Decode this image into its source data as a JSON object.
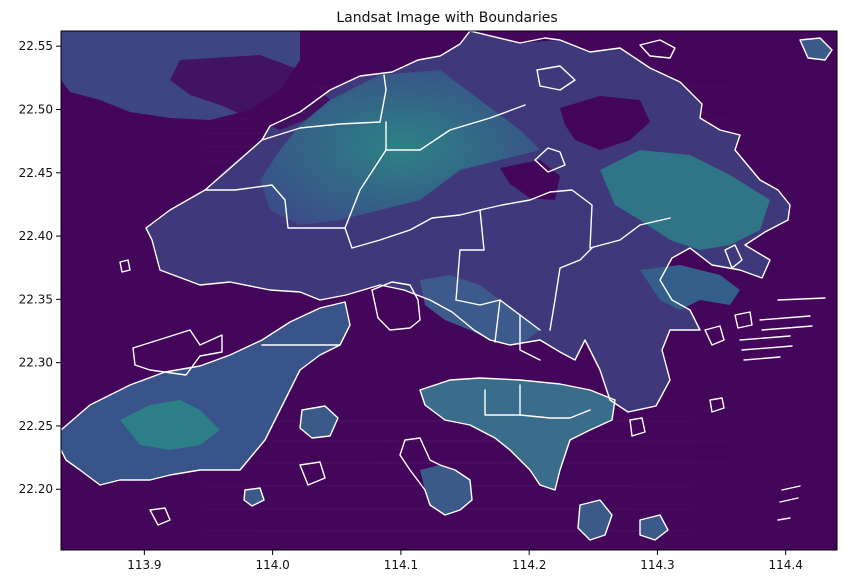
{
  "figure": {
    "title": "Landsat Image with Boundaries",
    "x_ticks": [
      "113.9",
      "114.0",
      "114.1",
      "114.2",
      "114.3",
      "114.4"
    ],
    "y_ticks": [
      "22.55",
      "22.50",
      "22.45",
      "22.40",
      "22.35",
      "22.30",
      "22.25",
      "22.20"
    ]
  },
  "chart_data": {
    "type": "map",
    "title": "Landsat Image with Boundaries",
    "x_ticks": [
      113.9,
      114.0,
      114.1,
      114.2,
      114.3,
      114.4
    ],
    "y_ticks": [
      22.55,
      22.5,
      22.45,
      22.4,
      22.35,
      22.3,
      22.25,
      22.2
    ],
    "xlim": [
      113.835,
      114.44
    ],
    "ylim": [
      22.152,
      22.562
    ],
    "colors": {
      "sea": "#44065a",
      "land_low": "#482878",
      "land_mid": "#31688e",
      "land_high": "#21908c",
      "land_peak": "#5ec962",
      "boundary": "#ffffff"
    }
  }
}
